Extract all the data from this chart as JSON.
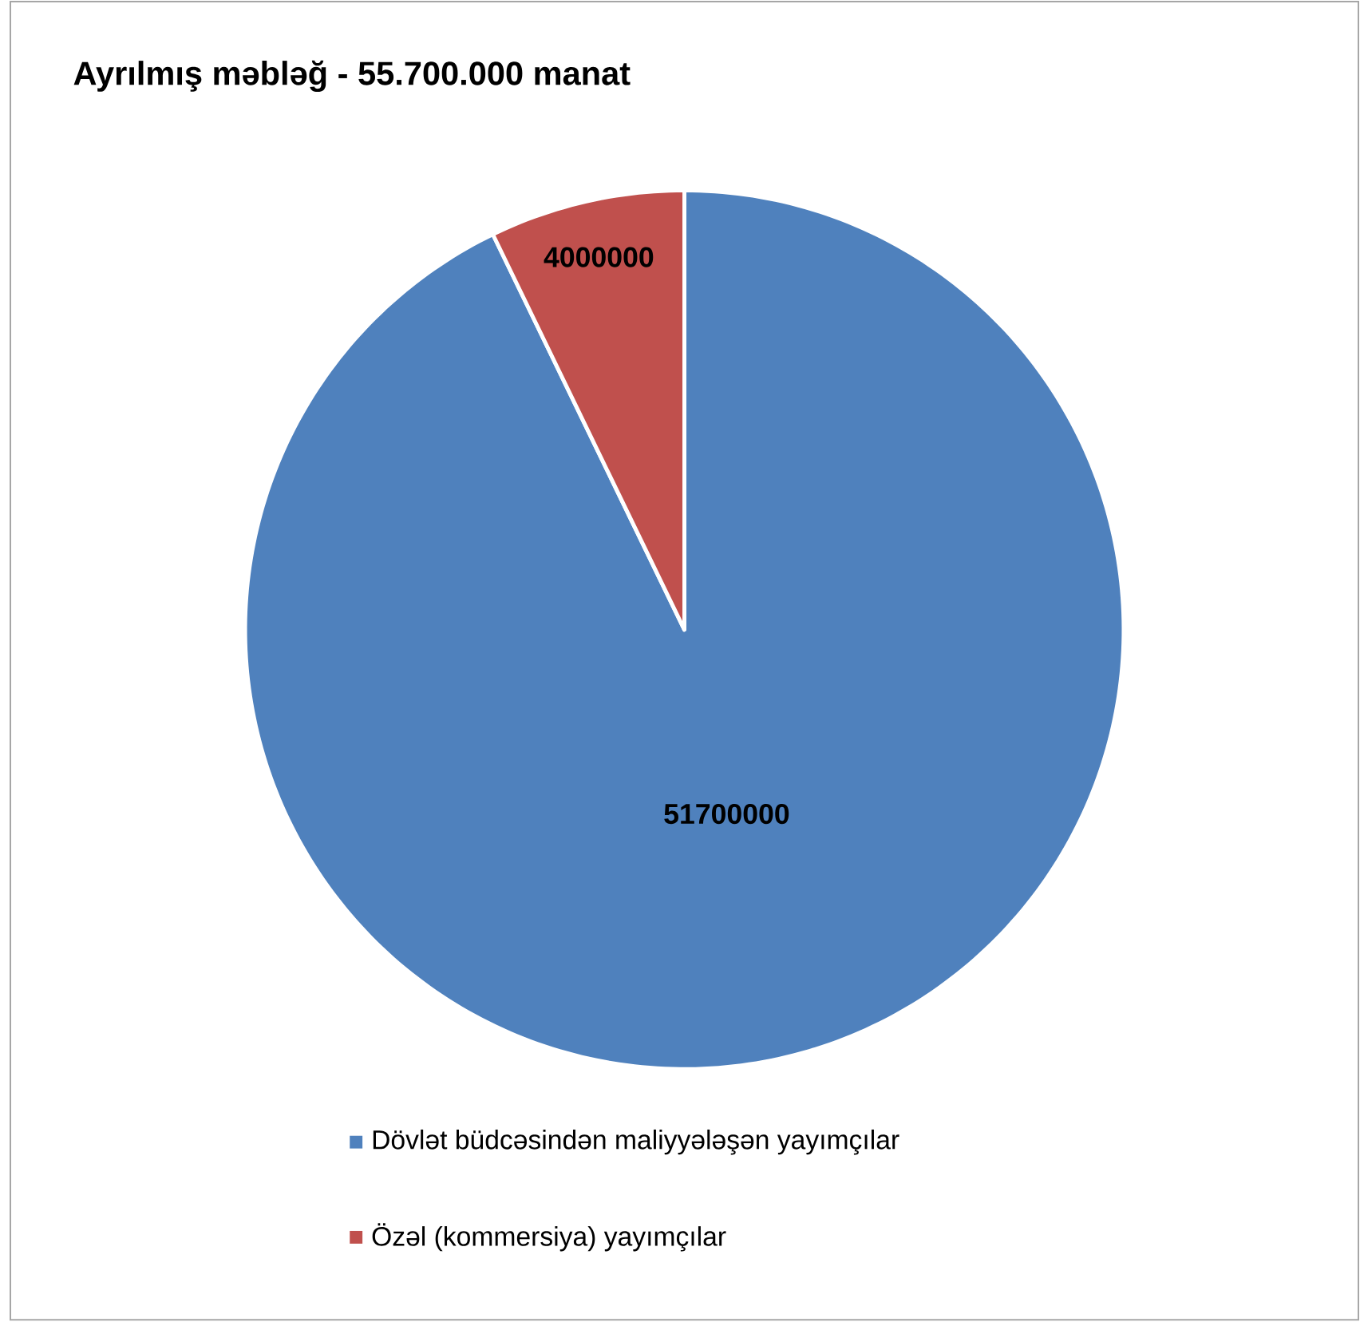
{
  "chart_data": {
    "type": "pie",
    "title": "Ayrılmış məbləğ - 55.700.000 manat",
    "categories": [
      "Dövlət büdcəsindən maliyyələşən yayımçılar",
      "Özəl (kommersiya) yayımçılar"
    ],
    "values": [
      51700000,
      4000000
    ],
    "colors": [
      "#4f81bd",
      "#c0504d"
    ],
    "data_labels": true,
    "legend": "bottom"
  }
}
